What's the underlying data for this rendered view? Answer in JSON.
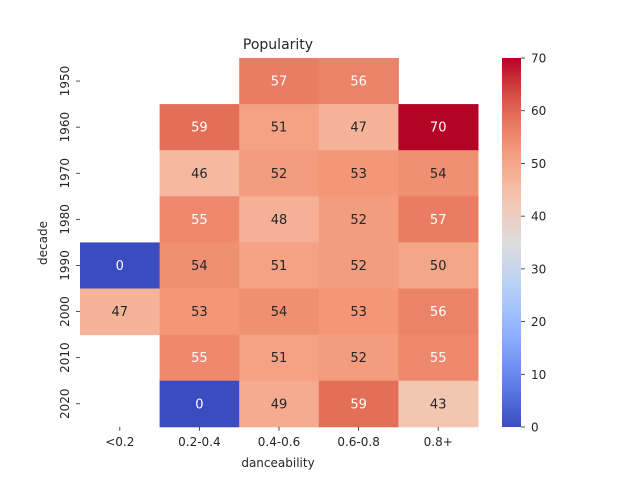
{
  "chart_data": {
    "type": "heatmap",
    "title": "Popularity",
    "xlabel": "danceability",
    "ylabel": "decade",
    "x_categories": [
      "<0.2",
      "0.2-0.4",
      "0.4-0.6",
      "0.6-0.8",
      "0.8+"
    ],
    "y_categories": [
      "1950",
      "1960",
      "1970",
      "1980",
      "1990",
      "2000",
      "2010",
      "2020"
    ],
    "values": [
      [
        null,
        null,
        57,
        56,
        null
      ],
      [
        null,
        59,
        51,
        47,
        70
      ],
      [
        null,
        46,
        52,
        53,
        54
      ],
      [
        null,
        55,
        48,
        52,
        57
      ],
      [
        0,
        54,
        51,
        52,
        50
      ],
      [
        47,
        53,
        54,
        53,
        56
      ],
      [
        null,
        55,
        51,
        52,
        55
      ],
      [
        null,
        0,
        49,
        59,
        43
      ]
    ],
    "colormap": "coolwarm",
    "vmin": 0,
    "vmax": 70,
    "colorbar_ticks": [
      0,
      10,
      20,
      30,
      40,
      50,
      60,
      70
    ],
    "annotations": true
  }
}
